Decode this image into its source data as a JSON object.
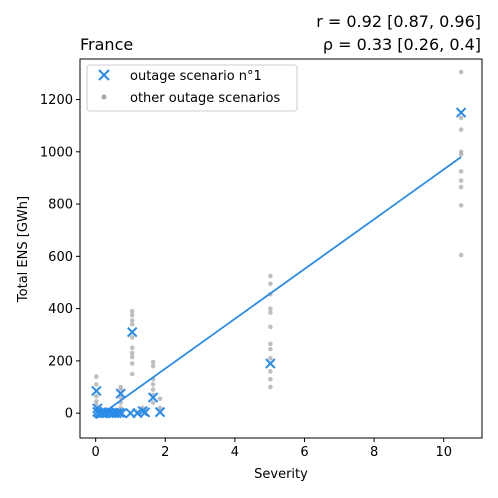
{
  "chart_data": {
    "type": "scatter",
    "title_left": "France",
    "title_right_line1": "r = 0.92 [0.87, 0.96]",
    "title_right_line2": "ρ = 0.33 [0.26, 0.4]",
    "xlabel": "Severity",
    "ylabel": "Total ENS [GWh]",
    "xlim": [
      -0.45,
      11.1
    ],
    "ylim": [
      -95,
      1355
    ],
    "xticks": [
      0,
      2,
      4,
      6,
      8,
      10
    ],
    "yticks": [
      0,
      200,
      400,
      600,
      800,
      1000,
      1200
    ],
    "legend_position": "top-left",
    "colors": {
      "highlight": "#2b8ce8",
      "other": "#a9a9a9"
    },
    "series": [
      {
        "name": "outage scenario n°1",
        "marker": "x",
        "points": [
          [
            0.02,
            85
          ],
          [
            0.05,
            18
          ],
          [
            0.05,
            5
          ],
          [
            0.1,
            0
          ],
          [
            0.15,
            2
          ],
          [
            0.2,
            0
          ],
          [
            0.25,
            1
          ],
          [
            0.3,
            0
          ],
          [
            0.38,
            3
          ],
          [
            0.45,
            0
          ],
          [
            0.52,
            1
          ],
          [
            0.6,
            0
          ],
          [
            0.68,
            2
          ],
          [
            0.72,
            75
          ],
          [
            0.75,
            0
          ],
          [
            1.0,
            0
          ],
          [
            1.05,
            310
          ],
          [
            1.2,
            0
          ],
          [
            1.35,
            8
          ],
          [
            1.42,
            3
          ],
          [
            1.65,
            60
          ],
          [
            1.85,
            4
          ],
          [
            5.02,
            190
          ],
          [
            10.5,
            1150
          ]
        ]
      },
      {
        "name": "other outage scenarios",
        "marker": "o",
        "points": [
          [
            10.5,
            1305
          ],
          [
            10.5,
            1130
          ],
          [
            10.5,
            1085
          ],
          [
            10.5,
            1000
          ],
          [
            10.5,
            990
          ],
          [
            10.5,
            925
          ],
          [
            10.5,
            890
          ],
          [
            10.5,
            865
          ],
          [
            10.5,
            795
          ],
          [
            10.5,
            605
          ],
          [
            5.02,
            525
          ],
          [
            5.02,
            495
          ],
          [
            5.02,
            455
          ],
          [
            5.02,
            400
          ],
          [
            5.02,
            385
          ],
          [
            5.02,
            330
          ],
          [
            5.02,
            265
          ],
          [
            5.02,
            245
          ],
          [
            5.02,
            210
          ],
          [
            5.02,
            160
          ],
          [
            5.02,
            130
          ],
          [
            5.02,
            100
          ],
          [
            1.05,
            390
          ],
          [
            1.05,
            375
          ],
          [
            1.05,
            355
          ],
          [
            1.05,
            340
          ],
          [
            1.05,
            290
          ],
          [
            1.05,
            250
          ],
          [
            1.05,
            230
          ],
          [
            1.05,
            215
          ],
          [
            1.05,
            190
          ],
          [
            1.05,
            150
          ],
          [
            1.65,
            195
          ],
          [
            1.65,
            180
          ],
          [
            1.65,
            130
          ],
          [
            1.65,
            110
          ],
          [
            1.65,
            90
          ],
          [
            1.65,
            70
          ],
          [
            1.65,
            40
          ],
          [
            1.85,
            55
          ],
          [
            1.85,
            20
          ],
          [
            0.72,
            100
          ],
          [
            0.72,
            90
          ],
          [
            0.72,
            60
          ],
          [
            0.72,
            40
          ],
          [
            0.72,
            20
          ],
          [
            0.02,
            140
          ],
          [
            0.02,
            110
          ],
          [
            0.02,
            65
          ],
          [
            0.02,
            45
          ],
          [
            0.02,
            30
          ],
          [
            0.1,
            20
          ],
          [
            0.2,
            10
          ],
          [
            0.3,
            15
          ],
          [
            0.45,
            8
          ],
          [
            0.6,
            12
          ],
          [
            0.68,
            6
          ],
          [
            1.2,
            5
          ],
          [
            1.35,
            20
          ],
          [
            1.42,
            12
          ]
        ]
      }
    ],
    "fit_line": {
      "x": [
        0.0,
        10.5
      ],
      "y": [
        -20,
        980
      ]
    }
  }
}
